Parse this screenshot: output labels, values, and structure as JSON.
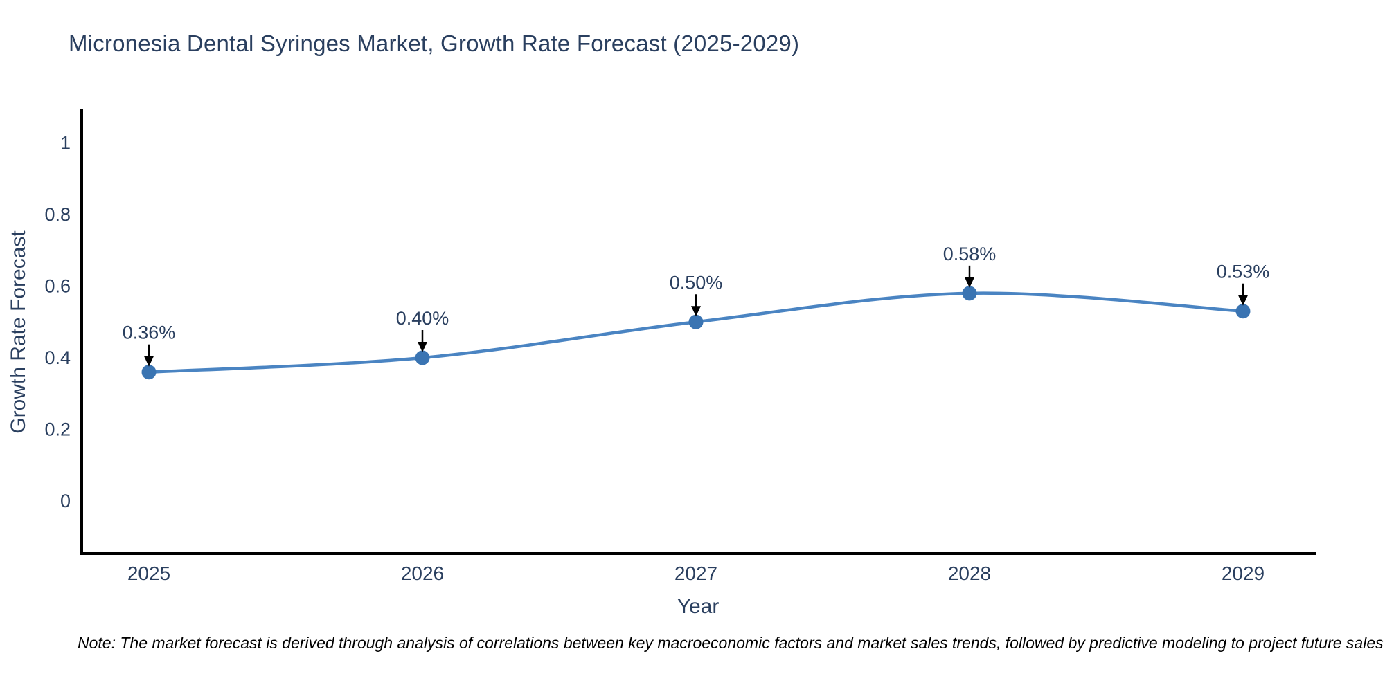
{
  "title": "Micronesia Dental Syringes Market, Growth Rate Forecast (2025-2029)",
  "note": "Note: The market forecast is derived through analysis of correlations between key macroeconomic factors and market sales trends, followed by predictive modeling to project future sales",
  "chart_data": {
    "type": "line",
    "line_shape": "spline",
    "x": [
      2025,
      2026,
      2027,
      2028,
      2029
    ],
    "x_tick_labels": [
      "2025",
      "2026",
      "2027",
      "2028",
      "2029"
    ],
    "values": [
      0.36,
      0.4,
      0.5,
      0.58,
      0.53
    ],
    "point_labels": [
      "0.36%",
      "0.40%",
      "0.50%",
      "0.58%",
      "0.53%"
    ],
    "xlabel": "Year",
    "ylabel": "Growth Rate Forecast",
    "y_ticks": [
      0,
      0.2,
      0.4,
      0.6,
      0.8,
      1
    ],
    "y_tick_labels": [
      "0",
      "0.2",
      "0.4",
      "0.6",
      "0.8",
      "1"
    ],
    "ylim": [
      -0.15,
      1.09
    ],
    "grid": false,
    "legend": "none",
    "series_name": "Growth Rate Forecast",
    "annotations_have_arrows": true
  },
  "colors": {
    "line": "#4a84c2",
    "marker": "#3a74b2",
    "axis": "#000000",
    "text": "#2a3f5f",
    "arrow": "#000000",
    "background": "#ffffff"
  }
}
